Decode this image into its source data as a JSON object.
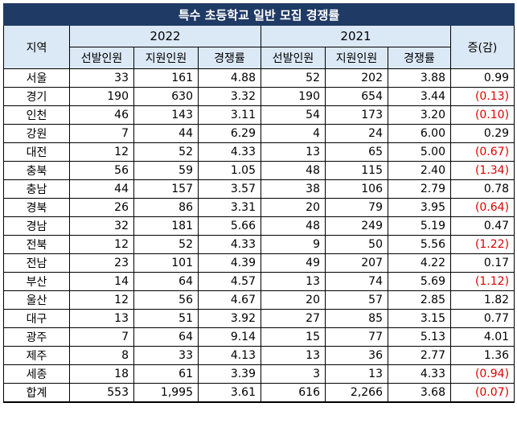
{
  "title": "특수 초등학교 일반 모집 경쟁률",
  "headers": {
    "region": "지역",
    "year_a": "2022",
    "year_b": "2021",
    "change": "증(감)",
    "sub": [
      "선발인원",
      "지원인원",
      "경쟁률"
    ]
  },
  "rows": [
    {
      "region": "서울",
      "s22": "33",
      "a22": "161",
      "r22": "4.88",
      "s21": "52",
      "a21": "202",
      "r21": "3.88",
      "chg": "0.99",
      "neg": false
    },
    {
      "region": "경기",
      "s22": "190",
      "a22": "630",
      "r22": "3.32",
      "s21": "190",
      "a21": "654",
      "r21": "3.44",
      "chg": "(0.13)",
      "neg": true
    },
    {
      "region": "인천",
      "s22": "46",
      "a22": "143",
      "r22": "3.11",
      "s21": "54",
      "a21": "173",
      "r21": "3.20",
      "chg": "(0.10)",
      "neg": true
    },
    {
      "region": "강원",
      "s22": "7",
      "a22": "44",
      "r22": "6.29",
      "s21": "4",
      "a21": "24",
      "r21": "6.00",
      "chg": "0.29",
      "neg": false
    },
    {
      "region": "대전",
      "s22": "12",
      "a22": "52",
      "r22": "4.33",
      "s21": "13",
      "a21": "65",
      "r21": "5.00",
      "chg": "(0.67)",
      "neg": true
    },
    {
      "region": "충북",
      "s22": "56",
      "a22": "59",
      "r22": "1.05",
      "s21": "48",
      "a21": "115",
      "r21": "2.40",
      "chg": "(1.34)",
      "neg": true
    },
    {
      "region": "충남",
      "s22": "44",
      "a22": "157",
      "r22": "3.57",
      "s21": "38",
      "a21": "106",
      "r21": "2.79",
      "chg": "0.78",
      "neg": false
    },
    {
      "region": "경북",
      "s22": "26",
      "a22": "86",
      "r22": "3.31",
      "s21": "20",
      "a21": "79",
      "r21": "3.95",
      "chg": "(0.64)",
      "neg": true
    },
    {
      "region": "경남",
      "s22": "32",
      "a22": "181",
      "r22": "5.66",
      "s21": "48",
      "a21": "249",
      "r21": "5.19",
      "chg": "0.47",
      "neg": false
    },
    {
      "region": "전북",
      "s22": "12",
      "a22": "52",
      "r22": "4.33",
      "s21": "9",
      "a21": "50",
      "r21": "5.56",
      "chg": "(1.22)",
      "neg": true
    },
    {
      "region": "전남",
      "s22": "23",
      "a22": "101",
      "r22": "4.39",
      "s21": "49",
      "a21": "207",
      "r21": "4.22",
      "chg": "0.17",
      "neg": false
    },
    {
      "region": "부산",
      "s22": "14",
      "a22": "64",
      "r22": "4.57",
      "s21": "13",
      "a21": "74",
      "r21": "5.69",
      "chg": "(1.12)",
      "neg": true
    },
    {
      "region": "울산",
      "s22": "12",
      "a22": "56",
      "r22": "4.67",
      "s21": "20",
      "a21": "57",
      "r21": "2.85",
      "chg": "1.82",
      "neg": false
    },
    {
      "region": "대구",
      "s22": "13",
      "a22": "51",
      "r22": "3.92",
      "s21": "27",
      "a21": "85",
      "r21": "3.15",
      "chg": "0.77",
      "neg": false
    },
    {
      "region": "광주",
      "s22": "7",
      "a22": "64",
      "r22": "9.14",
      "s21": "15",
      "a21": "77",
      "r21": "5.13",
      "chg": "4.01",
      "neg": false
    },
    {
      "region": "제주",
      "s22": "8",
      "a22": "33",
      "r22": "4.13",
      "s21": "13",
      "a21": "36",
      "r21": "2.77",
      "chg": "1.36",
      "neg": false
    },
    {
      "region": "세종",
      "s22": "18",
      "a22": "61",
      "r22": "3.39",
      "s21": "3",
      "a21": "13",
      "r21": "4.33",
      "chg": "(0.94)",
      "neg": true
    },
    {
      "region": "합계",
      "s22": "553",
      "a22": "1,995",
      "r22": "3.61",
      "s21": "616",
      "a21": "2,266",
      "r21": "3.68",
      "chg": "(0.07)",
      "neg": true
    }
  ],
  "colors": {
    "title_bg": "#1f3a64",
    "header_bg": "#dbe8f5",
    "negative": "#e00000"
  }
}
